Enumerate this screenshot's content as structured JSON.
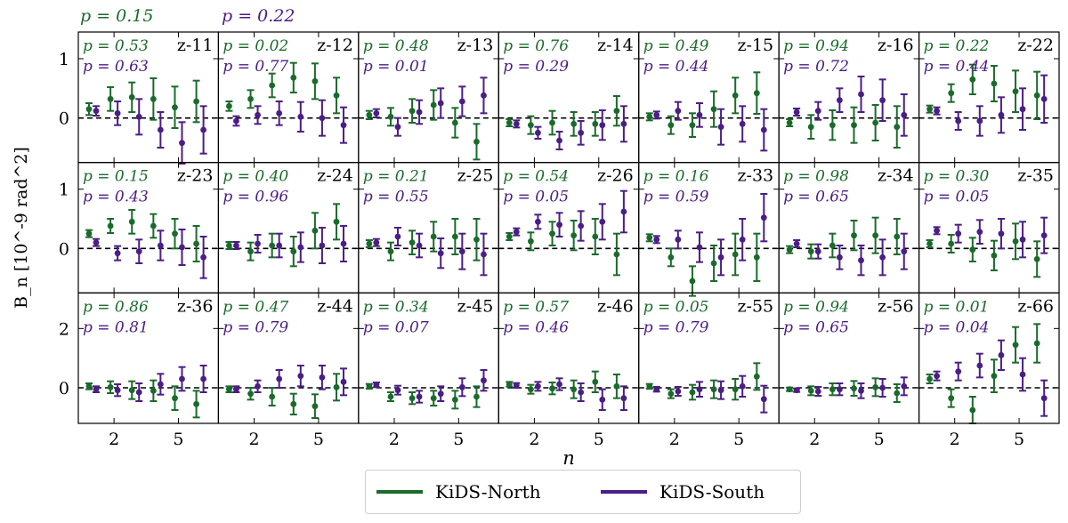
{
  "chart_data": {
    "type": "scatter",
    "layout": "grid 3x7 errorbar panels",
    "ylabel": "B_n [10^-9 rad^2]",
    "xlabel": "n",
    "x": [
      1,
      2,
      3,
      4,
      5,
      6
    ],
    "xticks": [
      "2",
      "5"
    ],
    "top_pvalues": {
      "north": "p = 0.15",
      "south": "p = 0.22"
    },
    "rows": [
      {
        "ylim": [
          -0.75,
          1.45
        ],
        "yticks": [
          "0",
          "1"
        ]
      },
      {
        "ylim": [
          -0.75,
          1.45
        ],
        "yticks": [
          "0",
          "1"
        ]
      },
      {
        "ylim": [
          -1.2,
          3.2
        ],
        "yticks": [
          "0",
          "2"
        ]
      }
    ],
    "series": [
      {
        "name": "KiDS-North",
        "color": "#1a6b2b"
      },
      {
        "name": "KiDS-South",
        "color": "#4b1d86"
      }
    ],
    "panels": [
      {
        "label": "z-11",
        "p_north": "p = 0.53",
        "p_south": "p = 0.63",
        "north": [
          0.15,
          0.32,
          0.35,
          0.32,
          0.18,
          0.28
        ],
        "north_err": [
          0.1,
          0.2,
          0.25,
          0.35,
          0.35,
          0.35
        ],
        "south": [
          0.12,
          0.08,
          0.02,
          -0.2,
          -0.42,
          -0.2
        ],
        "south_err": [
          0.08,
          0.2,
          0.3,
          0.3,
          0.35,
          0.4
        ]
      },
      {
        "label": "z-12",
        "p_north": "p = 0.02",
        "p_south": "p = 0.77",
        "north": [
          0.2,
          0.32,
          0.55,
          0.68,
          0.62,
          0.38
        ],
        "north_err": [
          0.08,
          0.15,
          0.2,
          0.25,
          0.3,
          0.3
        ],
        "south": [
          -0.05,
          0.05,
          0.08,
          0.02,
          0.0,
          -0.12
        ],
        "south_err": [
          0.08,
          0.15,
          0.2,
          0.25,
          0.3,
          0.3
        ]
      },
      {
        "label": "z-13",
        "p_north": "p = 0.48",
        "p_south": "p = 0.01",
        "north": [
          0.05,
          0.02,
          0.12,
          0.22,
          -0.08,
          -0.4
        ],
        "north_err": [
          0.07,
          0.15,
          0.2,
          0.25,
          0.25,
          0.3
        ],
        "south": [
          0.08,
          -0.15,
          0.1,
          0.25,
          0.28,
          0.38
        ],
        "south_err": [
          0.07,
          0.15,
          0.2,
          0.25,
          0.25,
          0.3
        ]
      },
      {
        "label": "z-14",
        "p_north": "p = 0.76",
        "p_south": "p = 0.29",
        "north": [
          -0.08,
          -0.12,
          -0.08,
          -0.1,
          -0.1,
          0.12
        ],
        "north_err": [
          0.06,
          0.15,
          0.2,
          0.2,
          0.2,
          0.25
        ],
        "south": [
          -0.1,
          -0.25,
          -0.38,
          -0.25,
          -0.12,
          -0.1
        ],
        "south_err": [
          0.06,
          0.1,
          0.15,
          0.2,
          0.25,
          0.3
        ]
      },
      {
        "label": "z-15",
        "p_north": "p = 0.49",
        "p_south": "p = 0.44",
        "north": [
          0.02,
          -0.12,
          -0.12,
          0.15,
          0.38,
          0.42
        ],
        "north_err": [
          0.06,
          0.15,
          0.2,
          0.3,
          0.3,
          0.35
        ],
        "south": [
          0.05,
          0.12,
          0.05,
          -0.15,
          -0.1,
          -0.2
        ],
        "south_err": [
          0.06,
          0.15,
          0.2,
          0.3,
          0.3,
          0.35
        ]
      },
      {
        "label": "z-16",
        "p_north": "p = 0.94",
        "p_south": "p = 0.72",
        "north": [
          -0.08,
          -0.15,
          -0.12,
          -0.12,
          -0.08,
          -0.15
        ],
        "north_err": [
          0.06,
          0.2,
          0.25,
          0.3,
          0.3,
          0.35
        ],
        "south": [
          0.1,
          0.12,
          0.3,
          0.4,
          0.3,
          0.05
        ],
        "south_err": [
          0.06,
          0.15,
          0.2,
          0.3,
          0.35,
          0.35
        ]
      },
      {
        "label": "z-22",
        "p_north": "p = 0.22",
        "p_south": "p = 0.44",
        "north": [
          0.15,
          0.42,
          0.65,
          0.58,
          0.45,
          0.38
        ],
        "north_err": [
          0.06,
          0.15,
          0.25,
          0.3,
          0.35,
          0.4
        ],
        "south": [
          0.12,
          -0.05,
          -0.05,
          0.05,
          0.15,
          0.32
        ],
        "south_err": [
          0.06,
          0.15,
          0.25,
          0.3,
          0.35,
          0.4
        ]
      },
      {
        "label": "z-23",
        "p_north": "p = 0.15",
        "p_south": "p = 0.43",
        "north": [
          0.25,
          0.38,
          0.45,
          0.38,
          0.25,
          0.08
        ],
        "north_err": [
          0.06,
          0.12,
          0.2,
          0.2,
          0.25,
          0.3
        ],
        "south": [
          0.1,
          -0.08,
          -0.05,
          0.05,
          0.02,
          -0.15
        ],
        "south_err": [
          0.06,
          0.12,
          0.2,
          0.25,
          0.3,
          0.35
        ]
      },
      {
        "label": "z-24",
        "p_north": "p = 0.40",
        "p_south": "p = 0.96",
        "north": [
          0.05,
          -0.05,
          0.05,
          -0.05,
          0.3,
          0.45
        ],
        "north_err": [
          0.06,
          0.15,
          0.2,
          0.25,
          0.3,
          0.3
        ],
        "south": [
          0.05,
          0.08,
          0.05,
          0.02,
          0.05,
          0.08
        ],
        "south_err": [
          0.06,
          0.15,
          0.2,
          0.25,
          0.3,
          0.3
        ]
      },
      {
        "label": "z-25",
        "p_north": "p = 0.21",
        "p_south": "p = 0.55",
        "north": [
          0.08,
          -0.05,
          0.1,
          0.2,
          0.2,
          0.15
        ],
        "north_err": [
          0.06,
          0.15,
          0.2,
          0.25,
          0.3,
          0.35
        ],
        "south": [
          0.1,
          0.2,
          0.05,
          -0.08,
          -0.05,
          -0.1
        ],
        "south_err": [
          0.06,
          0.15,
          0.2,
          0.25,
          0.3,
          0.35
        ]
      },
      {
        "label": "z-26",
        "p_north": "p = 0.54",
        "p_south": "p = 0.05",
        "north": [
          0.2,
          0.12,
          0.25,
          0.22,
          0.2,
          -0.1
        ],
        "north_err": [
          0.06,
          0.15,
          0.2,
          0.25,
          0.3,
          0.35
        ],
        "south": [
          0.28,
          0.45,
          0.4,
          0.38,
          0.45,
          0.62
        ],
        "south_err": [
          0.06,
          0.12,
          0.2,
          0.25,
          0.3,
          0.35
        ]
      },
      {
        "label": "z-33",
        "p_north": "p = 0.16",
        "p_south": "p = 0.59",
        "north": [
          0.18,
          -0.15,
          -0.55,
          -0.25,
          -0.1,
          -0.15
        ],
        "north_err": [
          0.06,
          0.15,
          0.25,
          0.3,
          0.35,
          0.4
        ],
        "south": [
          0.15,
          0.15,
          0.02,
          -0.15,
          0.15,
          0.52
        ],
        "south_err": [
          0.06,
          0.15,
          0.25,
          0.3,
          0.35,
          0.4
        ]
      },
      {
        "label": "z-34",
        "p_north": "p = 0.98",
        "p_south": "p = 0.65",
        "north": [
          -0.02,
          -0.05,
          0.05,
          0.22,
          0.22,
          0.2
        ],
        "north_err": [
          0.06,
          0.12,
          0.2,
          0.25,
          0.3,
          0.3
        ],
        "south": [
          0.08,
          -0.05,
          -0.15,
          -0.2,
          -0.15,
          -0.05
        ],
        "south_err": [
          0.06,
          0.12,
          0.2,
          0.25,
          0.3,
          0.3
        ]
      },
      {
        "label": "z-35",
        "p_north": "p = 0.30",
        "p_south": "p = 0.05",
        "north": [
          0.08,
          0.08,
          -0.02,
          -0.12,
          0.12,
          -0.18
        ],
        "north_err": [
          0.06,
          0.15,
          0.2,
          0.25,
          0.3,
          0.3
        ],
        "south": [
          0.3,
          0.25,
          0.28,
          0.25,
          0.15,
          0.22
        ],
        "south_err": [
          0.06,
          0.15,
          0.2,
          0.25,
          0.3,
          0.3
        ]
      },
      {
        "label": "z-36",
        "p_north": "p = 0.86",
        "p_south": "p = 0.81",
        "north": [
          0.05,
          0.02,
          -0.08,
          -0.1,
          -0.35,
          -0.55
        ],
        "north_err": [
          0.1,
          0.2,
          0.3,
          0.35,
          0.4,
          0.45
        ],
        "south": [
          -0.05,
          -0.08,
          -0.15,
          0.12,
          0.3,
          0.3
        ],
        "south_err": [
          0.1,
          0.2,
          0.3,
          0.35,
          0.4,
          0.45
        ]
      },
      {
        "label": "z-44",
        "p_north": "p = 0.47",
        "p_south": "p = 0.79",
        "north": [
          -0.05,
          -0.2,
          -0.3,
          -0.55,
          -0.62,
          0.02
        ],
        "north_err": [
          0.1,
          0.2,
          0.3,
          0.35,
          0.4,
          0.45
        ],
        "south": [
          -0.05,
          0.05,
          0.3,
          0.4,
          0.35,
          0.2
        ],
        "south_err": [
          0.1,
          0.2,
          0.3,
          0.35,
          0.4,
          0.45
        ]
      },
      {
        "label": "z-45",
        "p_north": "p = 0.34",
        "p_south": "p = 0.07",
        "north": [
          0.05,
          -0.3,
          -0.35,
          -0.35,
          -0.4,
          -0.3
        ],
        "north_err": [
          0.08,
          0.15,
          0.2,
          0.25,
          0.3,
          0.35
        ],
        "south": [
          0.1,
          -0.08,
          -0.3,
          -0.2,
          0.02,
          0.25
        ],
        "south_err": [
          0.08,
          0.15,
          0.2,
          0.25,
          0.3,
          0.35
        ]
      },
      {
        "label": "z-46",
        "p_north": "p = 0.57",
        "p_south": "p = 0.46",
        "north": [
          0.12,
          -0.05,
          -0.02,
          -0.05,
          0.2,
          0.05
        ],
        "north_err": [
          0.08,
          0.15,
          0.2,
          0.3,
          0.35,
          0.4
        ],
        "south": [
          0.08,
          0.05,
          0.12,
          -0.15,
          -0.4,
          -0.35
        ],
        "south_err": [
          0.08,
          0.15,
          0.2,
          0.3,
          0.35,
          0.4
        ]
      },
      {
        "label": "z-55",
        "p_north": "p = 0.05",
        "p_south": "p = 0.79",
        "north": [
          0.05,
          -0.2,
          -0.15,
          -0.05,
          -0.05,
          0.38
        ],
        "north_err": [
          0.08,
          0.15,
          0.25,
          0.3,
          0.35,
          0.45
        ],
        "south": [
          -0.05,
          -0.12,
          -0.05,
          -0.08,
          0.05,
          -0.38
        ],
        "south_err": [
          0.08,
          0.15,
          0.25,
          0.3,
          0.35,
          0.45
        ]
      },
      {
        "label": "z-56",
        "p_north": "p = 0.94",
        "p_south": "p = 0.65",
        "north": [
          -0.05,
          -0.1,
          -0.05,
          -0.02,
          0.02,
          -0.18
        ],
        "north_err": [
          0.06,
          0.15,
          0.2,
          0.25,
          0.3,
          0.3
        ],
        "south": [
          -0.08,
          -0.12,
          -0.05,
          -0.1,
          0.0,
          0.05
        ],
        "south_err": [
          0.06,
          0.15,
          0.2,
          0.25,
          0.3,
          0.3
        ]
      },
      {
        "label": "z-66",
        "p_north": "p = 0.01",
        "p_south": "p = 0.04",
        "north": [
          0.3,
          -0.35,
          -0.75,
          0.4,
          1.45,
          1.5
        ],
        "north_err": [
          0.15,
          0.3,
          0.45,
          0.55,
          0.6,
          0.65
        ],
        "south": [
          0.4,
          0.55,
          0.75,
          1.1,
          0.45,
          -0.35
        ],
        "south_err": [
          0.15,
          0.3,
          0.4,
          0.5,
          0.55,
          0.6
        ]
      }
    ]
  }
}
